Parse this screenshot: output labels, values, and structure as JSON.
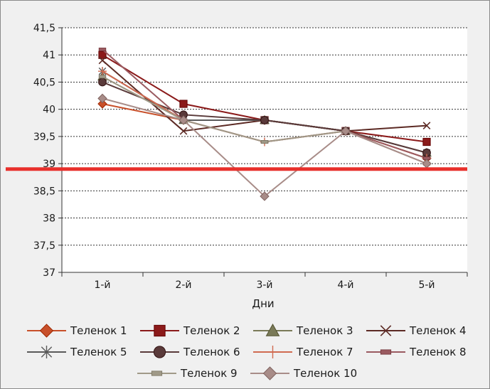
{
  "chart_data": {
    "type": "line",
    "title": "",
    "xlabel": "Дни",
    "ylabel": "",
    "categories": [
      "1-й",
      "2-й",
      "3-й",
      "4-й",
      "5-й"
    ],
    "ylim": [
      37,
      41.5
    ],
    "yticks": [
      37,
      37.5,
      38,
      38.5,
      39,
      39.5,
      40,
      40.5,
      41,
      41.5
    ],
    "ytick_labels": [
      "37",
      "37,5",
      "38",
      "38,5",
      "39",
      "39,5",
      "40",
      "40,5",
      "41",
      "41,5"
    ],
    "grid": "horizontal-dotted",
    "legend_position": "bottom",
    "reference_line": {
      "value": 38.9,
      "color": "#e8302c"
    },
    "series": [
      {
        "name": "Теленок 1",
        "color": "#c8502a",
        "marker": "diamond",
        "values": [
          40.1,
          39.8,
          39.8,
          39.6,
          39.1
        ]
      },
      {
        "name": "Теленок 2",
        "color": "#8b1a1a",
        "marker": "square",
        "values": [
          41.0,
          40.1,
          39.8,
          39.6,
          39.4
        ]
      },
      {
        "name": "Теленок 3",
        "color": "#7a7a58",
        "marker": "triangle",
        "values": [
          40.6,
          39.8,
          39.8,
          39.6,
          39.2
        ]
      },
      {
        "name": "Теленок 4",
        "color": "#5c2a24",
        "marker": "x",
        "values": [
          40.9,
          39.6,
          39.8,
          39.6,
          39.7
        ]
      },
      {
        "name": "Теленок 5",
        "color": "#5a5a5a",
        "marker": "star",
        "values": [
          40.7,
          39.8,
          39.8,
          39.6,
          39.2
        ]
      },
      {
        "name": "Теленок 6",
        "color": "#5a3a3a",
        "marker": "circle",
        "values": [
          40.5,
          39.9,
          39.8,
          39.6,
          39.2
        ]
      },
      {
        "name": "Теленок 7",
        "color": "#d06a50",
        "marker": "plus",
        "values": [
          40.7,
          39.8,
          39.4,
          39.6,
          39.1
        ]
      },
      {
        "name": "Теленок 8",
        "color": "#9a5a60",
        "marker": "dash",
        "values": [
          41.1,
          39.8,
          39.4,
          39.6,
          39.1
        ]
      },
      {
        "name": "Теленок 9",
        "color": "#a09a88",
        "marker": "dash",
        "values": [
          40.6,
          39.8,
          39.4,
          39.6,
          39.0
        ]
      },
      {
        "name": "Теленок 10",
        "color": "#a88c88",
        "marker": "diamond",
        "values": [
          40.2,
          39.8,
          38.4,
          39.6,
          39.0
        ]
      }
    ]
  }
}
